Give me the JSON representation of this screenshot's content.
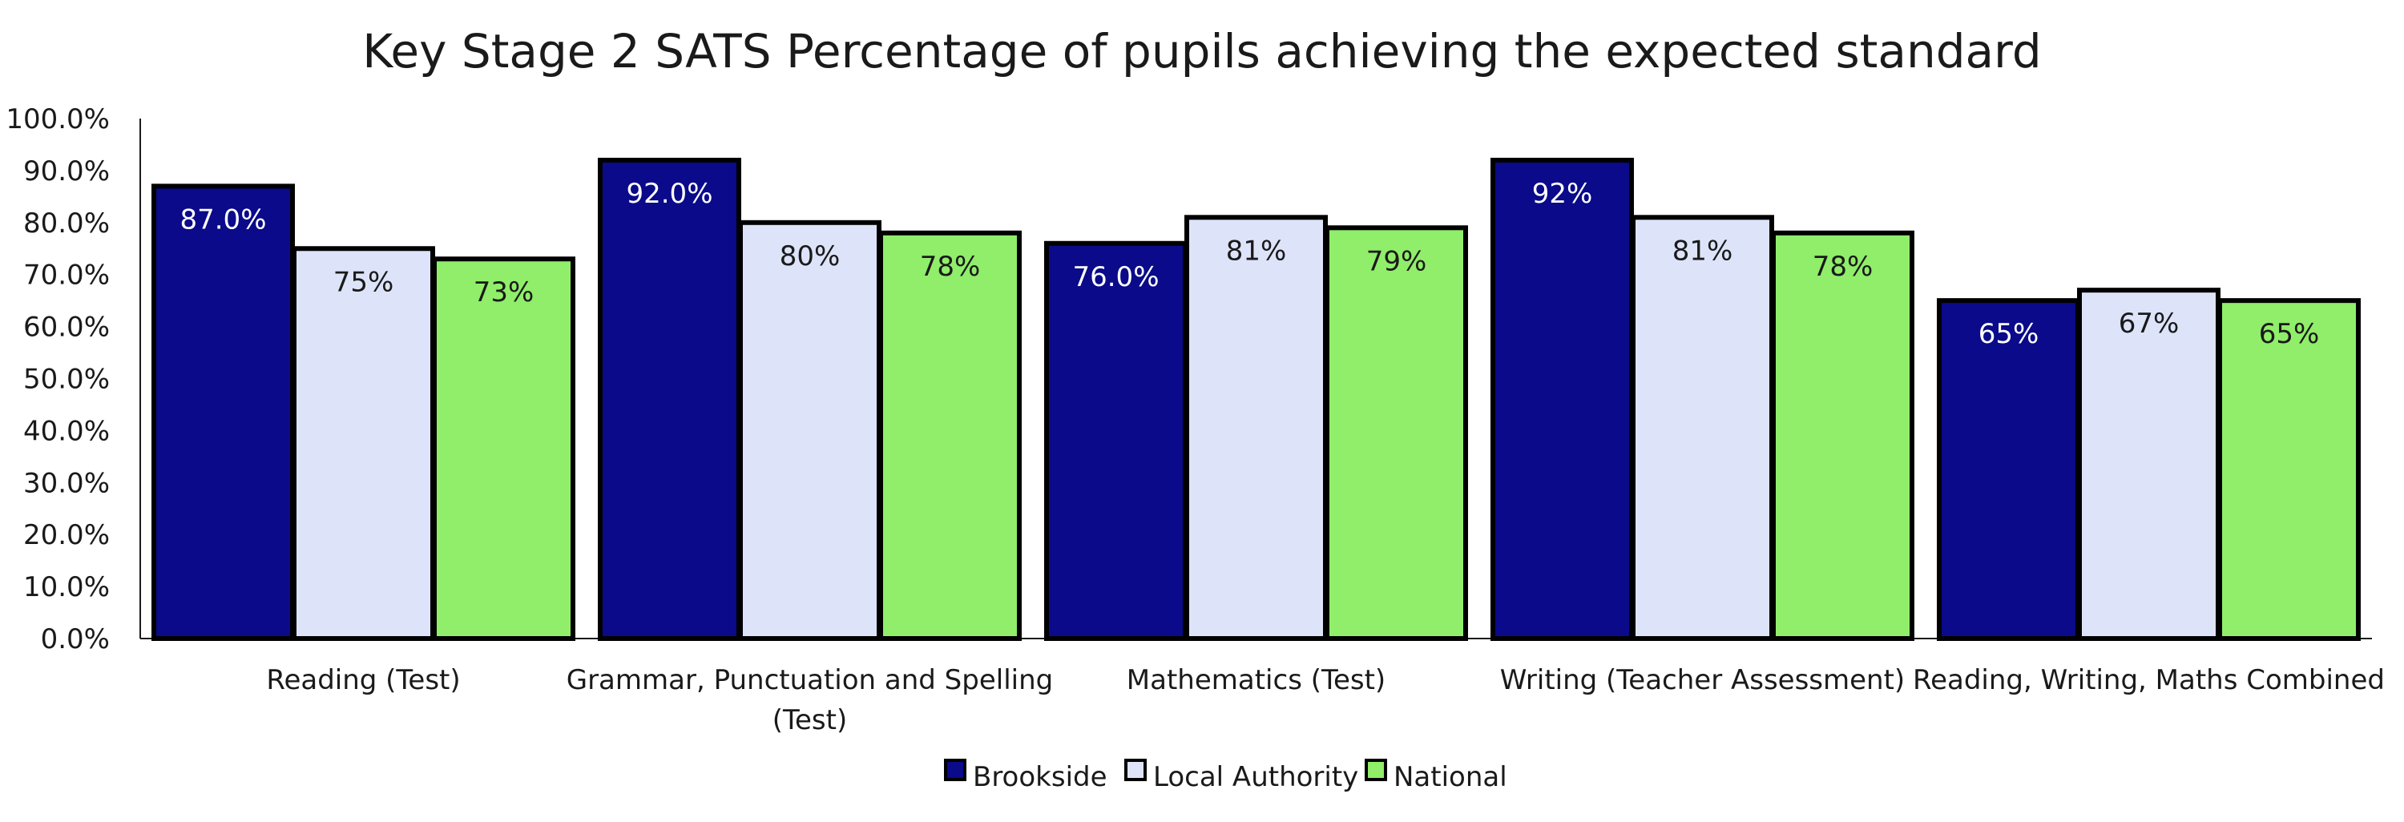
{
  "chart_data": {
    "type": "bar",
    "title": "Key Stage 2 SATS Percentage of pupils achieving the expected standard",
    "xlabel": "",
    "ylabel": "",
    "ylim": [
      0,
      100
    ],
    "ytick_step": 10,
    "ytick_labels": [
      "0.0%",
      "10.0%",
      "20.0%",
      "30.0%",
      "40.0%",
      "50.0%",
      "60.0%",
      "70.0%",
      "80.0%",
      "90.0%",
      "100.0%"
    ],
    "grid": false,
    "legend_position": "bottom",
    "categories": [
      "Reading (Test)",
      "Grammar, Punctuation and Spelling (Test)",
      "Mathematics (Test)",
      "Writing (Teacher Assessment)",
      "Reading, Writing, Maths Combined"
    ],
    "category_label_lines": [
      [
        "Reading (Test)"
      ],
      [
        "Grammar, Punctuation and Spelling",
        "(Test)"
      ],
      [
        "Mathematics (Test)"
      ],
      [
        "Writing (Teacher Assessment)"
      ],
      [
        "Reading, Writing, Maths Combined"
      ]
    ],
    "series": [
      {
        "name": "Brookside",
        "color": "#0a0a8a",
        "label_color": "#ffffff",
        "values": [
          87,
          92,
          76,
          92,
          65
        ],
        "labels": [
          "87.0%",
          "92.0%",
          "76.0%",
          "92%",
          "65%"
        ]
      },
      {
        "name": "Local Authority",
        "color": "#dde4fa",
        "label_color": "#1a1a1a",
        "values": [
          75,
          80,
          81,
          81,
          67
        ],
        "labels": [
          "75%",
          "80%",
          "81%",
          "81%",
          "67%"
        ]
      },
      {
        "name": "National",
        "color": "#90ee6a",
        "label_color": "#1a1a1a",
        "values": [
          73,
          78,
          79,
          78,
          65
        ],
        "labels": [
          "73%",
          "78%",
          "79%",
          "78%",
          "65%"
        ]
      }
    ]
  }
}
